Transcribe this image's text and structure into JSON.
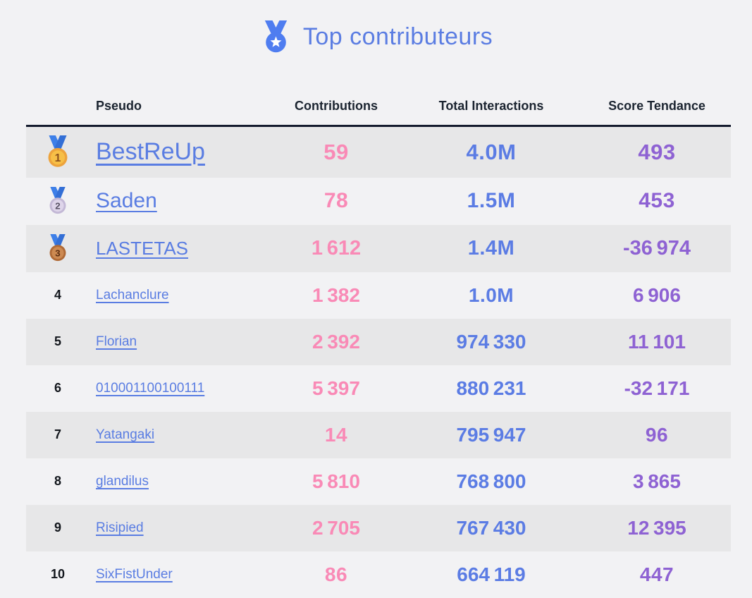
{
  "page": {
    "background": "#f2f2f4",
    "stripe_color": "#e7e7e8",
    "header_rule_color": "#141b2e"
  },
  "title": {
    "text": "Top contributeurs",
    "color": "#5b7de2",
    "icon": "medal-star-icon"
  },
  "table": {
    "columns": [
      "Pseudo",
      "Contributions",
      "Total Interactions",
      "Score Tendance"
    ],
    "value_colors": {
      "contributions": "#f98ab6",
      "interactions": "#5b7ce4",
      "score": "#8e62d3",
      "pseudo_link": "#5a7de2",
      "rank_text": "#12161c",
      "header_text": "#1b2430"
    },
    "medals": {
      "ribbon": "#3d7fe8",
      "ribbon_dark": "#336fd6",
      "gold": {
        "ring": "#eda33c",
        "face": "#f7bf47",
        "text": "#8a4f1d"
      },
      "silver": {
        "ring": "#c3b8d6",
        "face": "#ded5ea",
        "text": "#585265"
      },
      "bronze": {
        "ring": "#b06a36",
        "face": "#cd8a52",
        "text": "#5a2d12"
      }
    },
    "rows": [
      {
        "rank": "1",
        "medal": "gold",
        "pseudo": "BestReUp",
        "contributions": "59",
        "interactions": "4.0M",
        "score": "493"
      },
      {
        "rank": "2",
        "medal": "silver",
        "pseudo": "Saden",
        "contributions": "78",
        "interactions": "1.5M",
        "score": "453"
      },
      {
        "rank": "3",
        "medal": "bronze",
        "pseudo": "LASTETAS",
        "contributions": "1 612",
        "interactions": "1.4M",
        "score": "-36 974"
      },
      {
        "rank": "4",
        "medal": null,
        "pseudo": "Lachanclure",
        "contributions": "1 382",
        "interactions": "1.0M",
        "score": "6 906"
      },
      {
        "rank": "5",
        "medal": null,
        "pseudo": "Florian",
        "contributions": "2 392",
        "interactions": "974 330",
        "score": "11 101"
      },
      {
        "rank": "6",
        "medal": null,
        "pseudo": "010001100100111",
        "contributions": "5 397",
        "interactions": "880 231",
        "score": "-32 171"
      },
      {
        "rank": "7",
        "medal": null,
        "pseudo": "Yatangaki",
        "contributions": "14",
        "interactions": "795 947",
        "score": "96"
      },
      {
        "rank": "8",
        "medal": null,
        "pseudo": "glandilus",
        "contributions": "5 810",
        "interactions": "768 800",
        "score": "3 865"
      },
      {
        "rank": "9",
        "medal": null,
        "pseudo": "Risipied",
        "contributions": "2 705",
        "interactions": "767 430",
        "score": "12 395"
      },
      {
        "rank": "10",
        "medal": null,
        "pseudo": "SixFistUnder",
        "contributions": "86",
        "interactions": "664 119",
        "score": "447"
      }
    ]
  }
}
